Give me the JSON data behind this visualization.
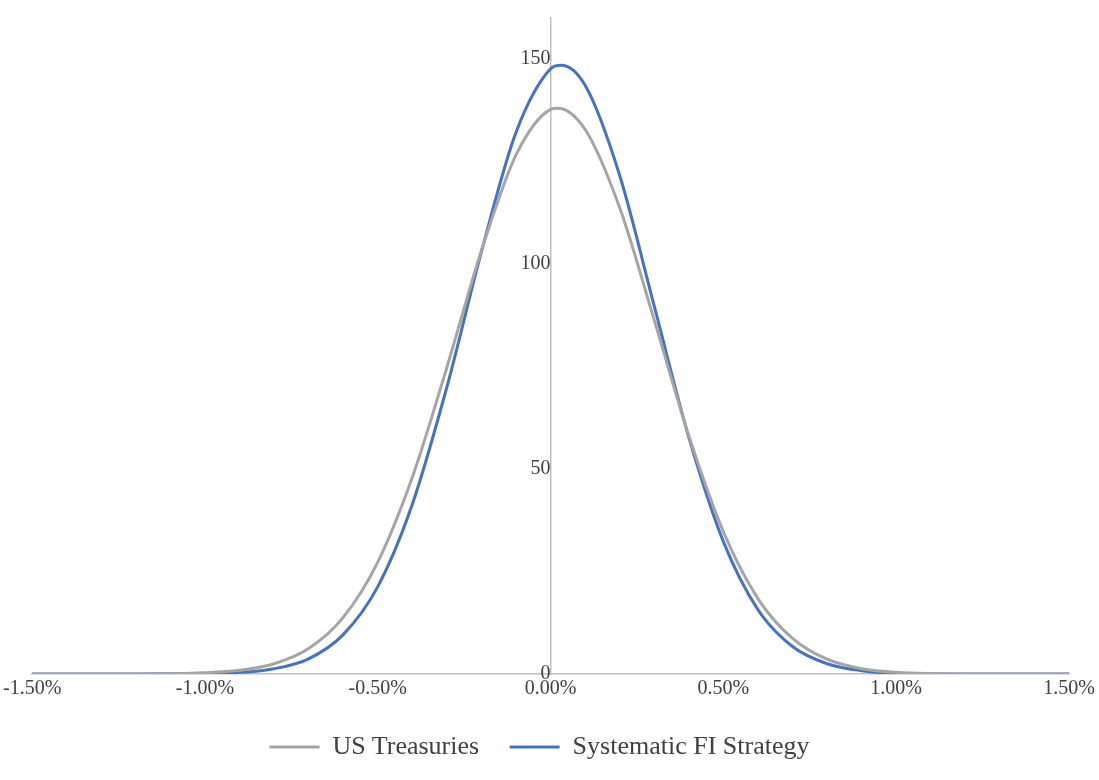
{
  "chart_data": {
    "type": "line",
    "xlim": [
      -1.5,
      1.5
    ],
    "xticks": [
      {
        "value": -1.5,
        "label": "-1.50%"
      },
      {
        "value": -1,
        "label": "-1.00%"
      },
      {
        "value": -0.5,
        "label": "-0.50%"
      },
      {
        "value": 0,
        "label": "0.00%"
      },
      {
        "value": 0.5,
        "label": "0.50%"
      },
      {
        "value": 1,
        "label": "1.00%"
      },
      {
        "value": 1.5,
        "label": "1.50%"
      }
    ],
    "ylim": [
      0,
      160
    ],
    "yticks": [
      0,
      50,
      100,
      150
    ],
    "grid": false,
    "legend": "bottom",
    "marker": "none",
    "line_style": "solid",
    "series": [
      {
        "name": "US Treasuries",
        "color": "#a5a5a5",
        "x": [
          -1.5,
          -1.2,
          -1,
          -0.9,
          -0.8,
          -0.7,
          -0.6,
          -0.5,
          -0.4,
          -0.3,
          -0.2,
          -0.1,
          0,
          0.02,
          0.1,
          0.2,
          0.3,
          0.4,
          0.5,
          0.6,
          0.7,
          0.8,
          0.9,
          1,
          1.2,
          1.5
        ],
        "values": [
          0,
          0,
          0.3,
          0.9,
          2.5,
          6.2,
          13.8,
          27.3,
          48,
          74.8,
          103.3,
          126.6,
          137.7,
          138,
          132.8,
          113.7,
          86.3,
          58.1,
          34.7,
          18.4,
          8.7,
          3.6,
          1.3,
          0.4,
          0,
          0
        ]
      },
      {
        "name": "Systematic FI Strategy",
        "color": "#4472c4",
        "x": [
          -1.5,
          -1.2,
          -0.9,
          -0.8,
          -0.7,
          -0.6,
          -0.5,
          -0.4,
          -0.3,
          -0.2,
          -0.1,
          0,
          0.03,
          0.1,
          0.2,
          0.3,
          0.4,
          0.5,
          0.6,
          0.7,
          0.8,
          0.9,
          1,
          1.2,
          1.5
        ],
        "values": [
          0,
          0,
          0.4,
          1.3,
          3.7,
          9.6,
          21.3,
          41.4,
          70,
          103,
          132.1,
          147.6,
          148.5,
          143.6,
          121.6,
          89.7,
          57.7,
          32.3,
          15.7,
          6.7,
          2.5,
          0.8,
          0.2,
          0,
          0
        ]
      }
    ]
  }
}
